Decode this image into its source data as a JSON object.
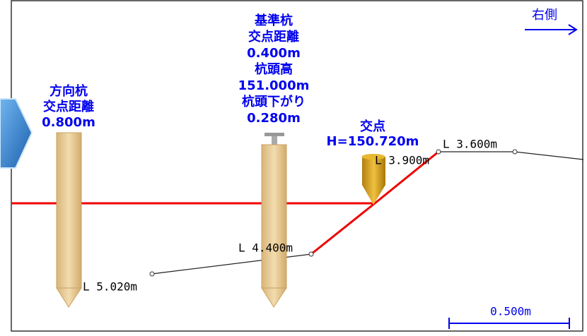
{
  "direction_stake": {
    "lines": [
      "方向杭",
      "交点距離",
      "0.800m"
    ]
  },
  "reference_stake": {
    "lines": [
      "基準杭",
      "交点距離",
      "0.400m",
      "杭頭高",
      "151.000m",
      "杭頭下がり",
      "0.280m"
    ]
  },
  "intersection": {
    "lines": [
      "交点",
      "H=150.720m"
    ]
  },
  "distance_labels": [
    "L 5.020m",
    "L 4.400m",
    "L 3.900m",
    "L 3.600m"
  ],
  "side_label": "右側",
  "scale_label": "0.500m"
}
